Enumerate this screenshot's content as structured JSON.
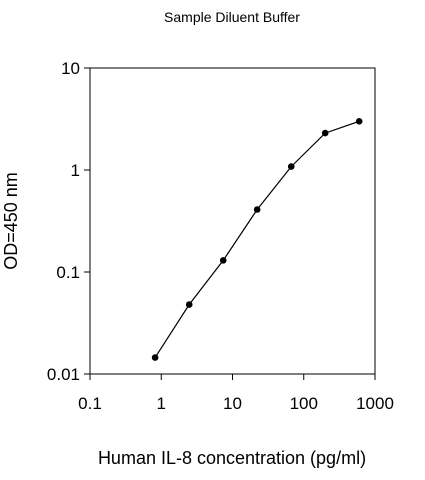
{
  "chart_data": {
    "type": "line",
    "title": "Sample Diluent Buffer",
    "xlabel": "Human IL-8 concentration (pg/ml)",
    "ylabel": "OD=450 nm",
    "x_scale": "log",
    "y_scale": "log",
    "xlim": [
      0.1,
      1000
    ],
    "ylim": [
      0.01,
      10
    ],
    "x_ticks": [
      0.1,
      1,
      10,
      100,
      1000
    ],
    "x_tick_labels": [
      "0.1",
      "1",
      "10",
      "100",
      "1000"
    ],
    "y_ticks": [
      0.01,
      0.1,
      1,
      10
    ],
    "y_tick_labels": [
      "0.01",
      "0.1",
      "1",
      "10"
    ],
    "grid": false,
    "legend": "none",
    "series": [
      {
        "x": [
          0.82,
          2.47,
          7.41,
          22.2,
          66.7,
          200,
          600
        ],
        "y": [
          0.0145,
          0.048,
          0.13,
          0.41,
          1.08,
          2.3,
          3.0
        ],
        "color": "#000000"
      }
    ]
  }
}
